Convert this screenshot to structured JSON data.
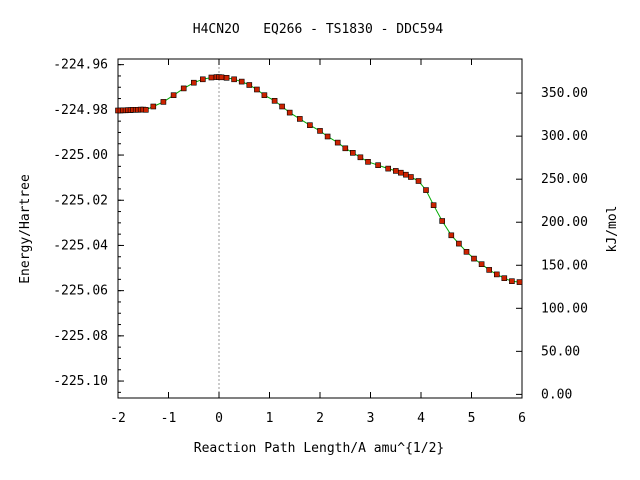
{
  "chart_data": {
    "type": "line",
    "title": "H4CN2O   EQ266 - TS1830 - DDC594",
    "xlabel": "Reaction Path Length/A amu^{1/2}",
    "ylabel": "Energy/Hartree",
    "y2label": "kJ/mol",
    "xlim": [
      -2,
      6
    ],
    "ylim": [
      -225.1075,
      -224.9575
    ],
    "x_ticks": [
      "-2",
      "-1",
      "0",
      "1",
      "2",
      "3",
      "4",
      "5",
      "6"
    ],
    "y_ticks": [
      "-224.96",
      "-224.98",
      "-225.00",
      "-225.02",
      "-225.04",
      "-225.06",
      "-225.08",
      "-225.10"
    ],
    "y2_ticks": [
      "350.00",
      "300.00",
      "250.00",
      "200.00",
      "150.00",
      "100.00",
      "50.00",
      "0.00"
    ],
    "y2_reference_energy": -225.1059,
    "ts_marker_x": 0,
    "colors": {
      "line": "#00aa00",
      "marker": "#cc2200",
      "marker_edge": "#000000",
      "ts_line": "#999999"
    },
    "series": [
      {
        "x": [
          -2.0,
          -1.95,
          -1.9,
          -1.85,
          -1.8,
          -1.75,
          -1.7,
          -1.65,
          -1.6,
          -1.55,
          -1.5,
          -1.45,
          -1.3,
          -1.1,
          -0.9,
          -0.7,
          -0.5,
          -0.32,
          -0.15,
          -0.05,
          0.0,
          0.05,
          0.15,
          0.3,
          0.45,
          0.6,
          0.75,
          0.9,
          1.1,
          1.25,
          1.4,
          1.6,
          1.8,
          2.0,
          2.15,
          2.35,
          2.5,
          2.65,
          2.8,
          2.95,
          3.15,
          3.35,
          3.5,
          3.6,
          3.7,
          3.8,
          3.95,
          4.1,
          4.25,
          4.42,
          4.6,
          4.75,
          4.9,
          5.05,
          5.2,
          5.35,
          5.5,
          5.65,
          5.8,
          5.95
        ],
        "y": [
          -224.9803,
          -224.9803,
          -224.9802,
          -224.9802,
          -224.9801,
          -224.9801,
          -224.98,
          -224.98,
          -224.98,
          -224.9799,
          -224.9799,
          -224.98,
          -224.9785,
          -224.9765,
          -224.9735,
          -224.9705,
          -224.968,
          -224.9665,
          -224.9657,
          -224.9655,
          -224.9655,
          -224.9656,
          -224.9658,
          -224.9665,
          -224.9675,
          -224.969,
          -224.971,
          -224.9735,
          -224.976,
          -224.9785,
          -224.9812,
          -224.984,
          -224.9868,
          -224.9893,
          -224.9918,
          -224.9945,
          -224.997,
          -224.999,
          -225.001,
          -225.003,
          -225.0045,
          -225.006,
          -225.007,
          -225.0078,
          -225.0087,
          -225.0097,
          -225.0115,
          -225.0155,
          -225.0222,
          -225.0292,
          -225.0355,
          -225.0392,
          -225.0428,
          -225.0458,
          -225.0483,
          -225.0508,
          -225.0528,
          -225.0545,
          -225.0558,
          -225.0562
        ]
      }
    ]
  }
}
